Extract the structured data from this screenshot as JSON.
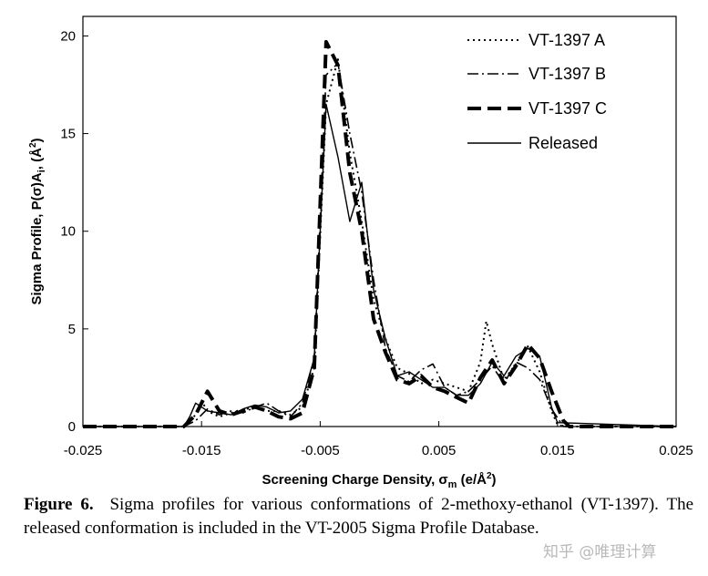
{
  "chart_data": {
    "type": "line",
    "title": "",
    "xlabel": "Screening Charge Density, σ",
    "xlabel_sub": "m",
    "xlabel_unit": " (e/Å",
    "xlabel_unit_sup": "2",
    "xlabel_end": ")",
    "ylabel": "Sigma Profile, P(σ)A",
    "ylabel_sub": "i",
    "ylabel_unit": ", (Å",
    "ylabel_unit_sup": "2",
    "ylabel_end": ")",
    "xlim": [
      -0.025,
      0.025
    ],
    "ylim": [
      0,
      21
    ],
    "xticks": [
      -0.025,
      -0.015,
      -0.005,
      0.005,
      0.015,
      0.025
    ],
    "xtick_labels": [
      "-0.025",
      "-0.015",
      "-0.005",
      "0.005",
      "0.015",
      "0.025"
    ],
    "yticks": [
      0,
      5,
      10,
      15,
      20
    ],
    "ytick_labels": [
      "0",
      "5",
      "10",
      "15",
      "20"
    ],
    "grid": false,
    "legend_position": "top-right",
    "series": [
      {
        "name": "VT-1397 A",
        "style": "dotted",
        "x": [
          -0.025,
          -0.0165,
          -0.0155,
          -0.015,
          -0.0145,
          -0.0135,
          -0.012,
          -0.0105,
          -0.0095,
          -0.0085,
          -0.0075,
          -0.0065,
          -0.0055,
          -0.0045,
          -0.0035,
          -0.0025,
          -0.0015,
          -0.0005,
          0.0005,
          0.0015,
          0.0025,
          0.0035,
          0.0045,
          0.0055,
          0.0065,
          0.0075,
          0.0085,
          0.009,
          0.0095,
          0.0105,
          0.0115,
          0.0125,
          0.0135,
          0.0145,
          0.015,
          0.0155,
          0.025
        ],
        "y": [
          0,
          0,
          0.6,
          1.3,
          0.8,
          0.5,
          0.8,
          1.0,
          0.8,
          0.8,
          0.6,
          1.0,
          3.0,
          16.5,
          18.8,
          14.0,
          10.5,
          6.5,
          4.5,
          3.0,
          2.7,
          2.2,
          2.4,
          2.2,
          2.0,
          1.8,
          3.3,
          5.4,
          4.2,
          2.4,
          3.2,
          4.1,
          2.8,
          0.8,
          0.1,
          0,
          0
        ]
      },
      {
        "name": "VT-1397 B",
        "style": "dashdot",
        "x": [
          -0.025,
          -0.0165,
          -0.0155,
          -0.0145,
          -0.0135,
          -0.0125,
          -0.0115,
          -0.0105,
          -0.0095,
          -0.0085,
          -0.0075,
          -0.0065,
          -0.0055,
          -0.0045,
          -0.0035,
          -0.0025,
          -0.0015,
          -0.0005,
          0.0005,
          0.0015,
          0.0025,
          0.0035,
          0.0045,
          0.0055,
          0.0065,
          0.0075,
          0.0085,
          0.0095,
          0.0105,
          0.0115,
          0.0125,
          0.0135,
          0.0145,
          0.0155,
          0.025
        ],
        "y": [
          0,
          0,
          0.3,
          0.9,
          0.6,
          0.8,
          0.7,
          1.0,
          1.2,
          0.8,
          0.5,
          1.2,
          3.5,
          18.0,
          18.6,
          15.0,
          12.0,
          7.5,
          4.0,
          2.6,
          2.3,
          2.9,
          3.2,
          2.0,
          1.6,
          1.8,
          2.4,
          3.1,
          2.2,
          3.3,
          3.0,
          2.4,
          0.9,
          0,
          0
        ]
      },
      {
        "name": "VT-1397 C",
        "style": "dashed",
        "x": [
          -0.025,
          -0.0165,
          -0.0155,
          -0.0145,
          -0.0135,
          -0.0125,
          -0.0115,
          -0.0105,
          -0.0095,
          -0.0085,
          -0.0075,
          -0.0065,
          -0.0055,
          -0.0045,
          -0.0035,
          -0.0025,
          -0.0015,
          -0.0005,
          0.0005,
          0.0015,
          0.0025,
          0.0035,
          0.0045,
          0.0055,
          0.0065,
          0.0075,
          0.0085,
          0.0095,
          0.0105,
          0.0115,
          0.0125,
          0.0135,
          0.0145,
          0.0155,
          0.016,
          0.025
        ],
        "y": [
          0,
          0,
          0.6,
          1.8,
          0.8,
          0.6,
          0.8,
          1.0,
          0.8,
          0.5,
          0.4,
          0.7,
          3.0,
          19.7,
          18.5,
          13.0,
          10.0,
          5.5,
          3.8,
          2.4,
          2.2,
          2.6,
          2.0,
          1.8,
          1.5,
          1.2,
          2.5,
          3.4,
          2.2,
          3.1,
          4.2,
          3.5,
          1.8,
          0.3,
          0,
          0
        ]
      },
      {
        "name": "Released",
        "style": "solid",
        "x": [
          -0.025,
          -0.0165,
          -0.016,
          -0.0155,
          -0.0145,
          -0.0135,
          -0.0125,
          -0.0115,
          -0.0105,
          -0.0095,
          -0.0085,
          -0.0075,
          -0.0065,
          -0.0055,
          -0.0045,
          -0.0035,
          -0.0025,
          -0.0015,
          -0.0005,
          0.0005,
          0.0015,
          0.0025,
          0.0035,
          0.0045,
          0.0055,
          0.0065,
          0.0075,
          0.0085,
          0.0095,
          0.0105,
          0.0115,
          0.0125,
          0.0135,
          0.0145,
          0.015,
          0.025
        ],
        "y": [
          0,
          0,
          0.5,
          1.2,
          0.8,
          0.7,
          0.6,
          0.9,
          1.1,
          1.0,
          0.7,
          0.8,
          1.4,
          3.5,
          16.5,
          13.8,
          10.5,
          12.5,
          7.0,
          4.5,
          2.6,
          2.8,
          2.4,
          2.0,
          2.0,
          1.6,
          1.6,
          2.2,
          3.3,
          2.6,
          3.6,
          4.0,
          3.6,
          1.0,
          0.2,
          0
        ]
      }
    ]
  },
  "caption": {
    "label": "Figure 6.",
    "text": "Sigma profiles for various conformations of 2-methoxy-ethanol (VT-1397). The released conformation is included in the VT-2005 Sigma Profile Database."
  },
  "watermark": "知乎 @唯理计算"
}
